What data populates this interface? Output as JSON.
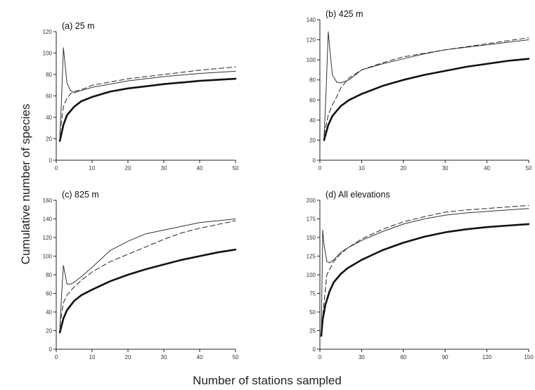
{
  "figure": {
    "xlabel": "Number of stations sampled",
    "ylabel": "Cumulative number of species"
  },
  "chart_data": [
    {
      "type": "line",
      "title": "(a)  25 m",
      "xlim": [
        0,
        50
      ],
      "ylim": [
        0,
        120
      ],
      "xticks": [
        "0",
        "10",
        "20",
        "30",
        "40",
        "50"
      ],
      "yticks": [
        "0",
        "20",
        "40",
        "60",
        "80",
        "100",
        "120"
      ],
      "series": [
        {
          "style": "thick-solid",
          "x": [
            1,
            2,
            3,
            5,
            7,
            10,
            15,
            20,
            25,
            30,
            35,
            40,
            45,
            50
          ],
          "y": [
            18,
            33,
            42,
            50,
            55,
            59,
            64,
            67,
            69,
            71,
            72.5,
            74,
            75,
            76
          ]
        },
        {
          "style": "thin-solid",
          "x": [
            1,
            1.5,
            2,
            2.5,
            3,
            4,
            5,
            6,
            8,
            10,
            15,
            20,
            30,
            40,
            50
          ],
          "y": [
            20,
            60,
            105,
            88,
            72,
            65,
            63,
            64,
            66,
            68,
            71,
            74,
            78,
            81,
            83
          ]
        },
        {
          "style": "dashed",
          "x": [
            1,
            2,
            3,
            4,
            5,
            6,
            8,
            10,
            15,
            20,
            30,
            40,
            50
          ],
          "y": [
            25,
            50,
            58,
            62,
            64,
            65,
            67,
            70,
            73,
            76,
            80,
            84,
            87
          ]
        }
      ]
    },
    {
      "type": "line",
      "title": "(b)  425 m",
      "xlim": [
        0,
        50
      ],
      "ylim": [
        0,
        140
      ],
      "xticks": [
        "0",
        "10",
        "20",
        "30",
        "40",
        "50"
      ],
      "yticks": [
        "0",
        "20",
        "40",
        "60",
        "80",
        "100",
        "120",
        "140"
      ],
      "series": [
        {
          "style": "thick-solid",
          "x": [
            1,
            2,
            3,
            5,
            7,
            10,
            15,
            20,
            25,
            30,
            35,
            40,
            45,
            50
          ],
          "y": [
            20,
            35,
            44,
            54,
            60,
            66,
            74,
            80,
            85,
            89,
            93,
            96,
            99,
            101
          ]
        },
        {
          "style": "thin-solid",
          "x": [
            1,
            1.5,
            2,
            2.5,
            3,
            4,
            5,
            7,
            10,
            15,
            20,
            25,
            30,
            40,
            50
          ],
          "y": [
            22,
            70,
            128,
            105,
            85,
            78,
            77,
            80,
            90,
            96,
            101,
            106,
            110,
            115,
            120
          ]
        },
        {
          "style": "dashed",
          "x": [
            1,
            2,
            3,
            4,
            5,
            7,
            10,
            15,
            20,
            30,
            40,
            50
          ],
          "y": [
            25,
            45,
            55,
            63,
            72,
            82,
            90,
            97,
            103,
            110,
            116,
            122
          ]
        }
      ]
    },
    {
      "type": "line",
      "title": "(c)  825 m",
      "xlim": [
        0,
        50
      ],
      "ylim": [
        0,
        160
      ],
      "xticks": [
        "0",
        "10",
        "20",
        "30",
        "40",
        "50"
      ],
      "yticks": [
        "0",
        "20",
        "40",
        "60",
        "80",
        "100",
        "120",
        "140",
        "160"
      ],
      "series": [
        {
          "style": "thick-solid",
          "x": [
            1,
            2,
            3,
            5,
            7,
            10,
            15,
            20,
            25,
            30,
            35,
            40,
            45,
            50
          ],
          "y": [
            18,
            33,
            42,
            52,
            58,
            64,
            73,
            80,
            86,
            91,
            96,
            100,
            104,
            107
          ]
        },
        {
          "style": "thin-solid",
          "x": [
            1,
            1.5,
            2,
            2.5,
            3,
            4,
            5,
            7,
            10,
            15,
            20,
            25,
            30,
            35,
            40,
            50
          ],
          "y": [
            20,
            60,
            90,
            80,
            70,
            70,
            72,
            78,
            88,
            106,
            116,
            124,
            128,
            132,
            136,
            140
          ]
        },
        {
          "style": "dashed",
          "x": [
            1,
            2,
            3,
            5,
            7,
            10,
            15,
            20,
            25,
            30,
            35,
            40,
            50
          ],
          "y": [
            25,
            50,
            58,
            67,
            74,
            83,
            94,
            102,
            110,
            118,
            125,
            130,
            138
          ]
        }
      ]
    },
    {
      "type": "line",
      "title": "(d)  All elevations",
      "xlim": [
        0,
        150
      ],
      "ylim": [
        0,
        200
      ],
      "xticks": [
        "0",
        "30",
        "60",
        "90",
        "120",
        "150"
      ],
      "yticks": [
        "0",
        "25",
        "50",
        "75",
        "100",
        "125",
        "150",
        "175",
        "200"
      ],
      "series": [
        {
          "style": "thick-solid",
          "x": [
            1,
            2,
            4,
            7,
            10,
            15,
            20,
            30,
            45,
            60,
            75,
            90,
            105,
            120,
            135,
            150
          ],
          "y": [
            18,
            40,
            60,
            78,
            90,
            101,
            109,
            120,
            133,
            143,
            151,
            157,
            161,
            164,
            166,
            168
          ]
        },
        {
          "style": "thin-solid",
          "x": [
            1,
            2,
            3,
            5,
            7,
            10,
            13,
            15,
            20,
            30,
            45,
            60,
            75,
            90,
            105,
            120,
            135,
            150
          ],
          "y": [
            20,
            160,
            140,
            118,
            116,
            120,
            126,
            130,
            136,
            146,
            158,
            168,
            175,
            180,
            183,
            185,
            187,
            189
          ]
        },
        {
          "style": "dashed",
          "x": [
            1,
            5,
            10,
            15,
            20,
            30,
            45,
            60,
            75,
            90,
            105,
            120,
            135,
            150
          ],
          "y": [
            25,
            100,
            118,
            128,
            136,
            148,
            161,
            171,
            178,
            184,
            187,
            189,
            191,
            193
          ]
        }
      ]
    }
  ]
}
